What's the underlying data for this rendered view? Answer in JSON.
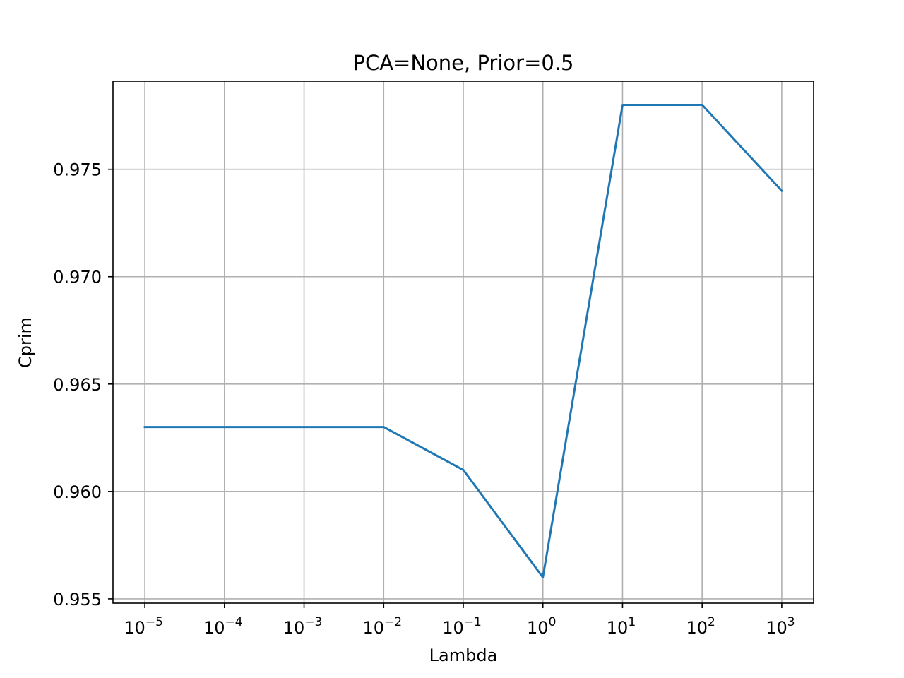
{
  "chart_data": {
    "type": "line",
    "title": "PCA=None, Prior=0.5",
    "xlabel": "Lambda",
    "ylabel": "Cprim",
    "xscale": "log",
    "x": [
      1e-05,
      0.0001,
      0.001,
      0.01,
      0.1,
      1,
      10,
      100,
      1000
    ],
    "x_tick_labels": [
      {
        "base": "10",
        "exp": "−5"
      },
      {
        "base": "10",
        "exp": "−4"
      },
      {
        "base": "10",
        "exp": "−3"
      },
      {
        "base": "10",
        "exp": "−2"
      },
      {
        "base": "10",
        "exp": "−1"
      },
      {
        "base": "10",
        "exp": "0"
      },
      {
        "base": "10",
        "exp": "1"
      },
      {
        "base": "10",
        "exp": "2"
      },
      {
        "base": "10",
        "exp": "3"
      }
    ],
    "series": [
      {
        "values": [
          0.963,
          0.963,
          0.963,
          0.963,
          0.961,
          0.956,
          0.978,
          0.978,
          0.974
        ],
        "color": "#1f77b4"
      }
    ],
    "yticks": [
      0.955,
      0.96,
      0.965,
      0.97,
      0.975
    ],
    "ytick_labels": [
      "0.955",
      "0.960",
      "0.965",
      "0.970",
      "0.975"
    ],
    "ylim": [
      0.9548,
      0.9791
    ],
    "grid": true,
    "grid_color": "#b0b0b0"
  }
}
